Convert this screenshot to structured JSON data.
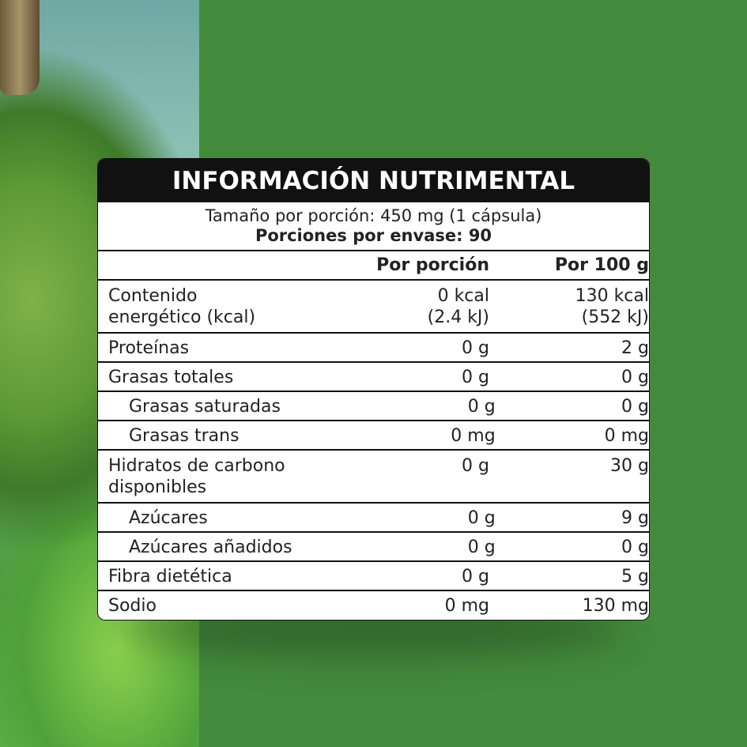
{
  "header": {
    "title": "INFORMACIÓN NUTRIMENTAL",
    "serving_size": "Tamaño por porción: 450 mg (1 cápsula)",
    "servings": "Porciones por envase: 90"
  },
  "table": {
    "headers": [
      "Por porción",
      "Por 100 g"
    ],
    "rows": [
      {
        "label": [
          "Contenido",
          "energético (kcal)"
        ],
        "per_serving": [
          "0 kcal",
          "(2.4 kJ)"
        ],
        "per_100g": [
          "130 kcal",
          "(552 kJ)"
        ]
      },
      {
        "label": [
          "Proteínas"
        ],
        "per_serving": [
          "0 g"
        ],
        "per_100g": [
          "2 g"
        ]
      },
      {
        "label": [
          "Grasas totales"
        ],
        "per_serving": [
          "0 g"
        ],
        "per_100g": [
          "0 g"
        ]
      },
      {
        "label": [
          "Grasas saturadas"
        ],
        "per_serving": [
          "0 g"
        ],
        "per_100g": [
          "0 g"
        ]
      },
      {
        "label": [
          "Grasas trans"
        ],
        "per_serving": [
          "0 mg"
        ],
        "per_100g": [
          "0 mg"
        ]
      },
      {
        "label": [
          "Hidratos de carbono",
          "disponibles"
        ],
        "per_serving": [
          "0 g"
        ],
        "per_100g": [
          "30 g"
        ]
      },
      {
        "label": [
          "Azúcares"
        ],
        "per_serving": [
          "0 g"
        ],
        "per_100g": [
          "9 g"
        ]
      },
      {
        "label": [
          "Azúcares añadidos"
        ],
        "per_serving": [
          "0 g"
        ],
        "per_100g": [
          "0 g"
        ]
      },
      {
        "label": [
          "Fibra dietética"
        ],
        "per_serving": [
          "0 g"
        ],
        "per_100g": [
          "5 g"
        ]
      },
      {
        "label": [
          "Sodio"
        ],
        "per_serving": [
          "0 mg"
        ],
        "per_100g": [
          "130 mg"
        ]
      }
    ]
  }
}
